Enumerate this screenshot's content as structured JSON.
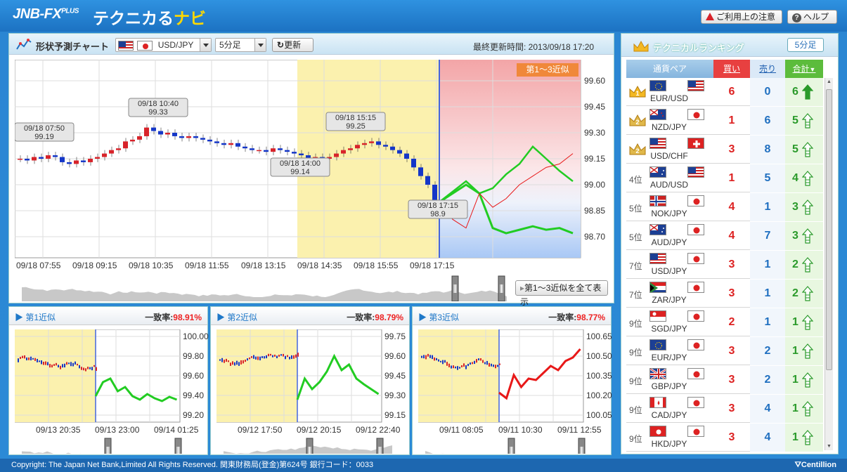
{
  "header": {
    "logo": "JNB-FX",
    "logo_plus": "PLUS",
    "app_name_a": "テクニカる",
    "app_name_b": "ナビ",
    "notice_btn": "ご利用上の注意",
    "help_btn": "ヘルプ"
  },
  "main": {
    "title": "形状予測チャート",
    "pair": "USD/JPY",
    "interval": "5分足",
    "refresh": "更新",
    "updated": "最終更新時間: 2013/09/18 17:20",
    "badge": "第1～3近似",
    "y_ticks": [
      "99.60",
      "99.45",
      "99.30",
      "99.15",
      "99.00",
      "98.85",
      "98.70"
    ],
    "x_ticks": [
      "09/18 07:55",
      "09/18 09:15",
      "09/18 10:35",
      "09/18 11:55",
      "09/18 13:15",
      "09/18 14:35",
      "09/18 15:55",
      "09/18 17:15"
    ],
    "callouts": [
      {
        "t": "09/18 07:50",
        "v": "99.19"
      },
      {
        "t": "09/18 10:40",
        "v": "99.33"
      },
      {
        "t": "09/18 15:15",
        "v": "99.25"
      },
      {
        "t": "09/18 14:00",
        "v": "99.14"
      },
      {
        "t": "09/18 17:15",
        "v": "98.9"
      }
    ],
    "show_all": "第1～3近似を全て表示",
    "colors": {
      "forecast_up": "#f3a5a7",
      "forecast_down": "#a9c8f5",
      "highlight": "#fbf1ae",
      "candle_up": "#d8232a",
      "candle_down": "#1537c8",
      "line_green": "#22cc22"
    }
  },
  "similar": [
    {
      "title": "第1近似",
      "match_label": "一致率:",
      "match": "98.91%",
      "y_ticks": [
        "100.00",
        "99.80",
        "99.60",
        "99.40",
        "99.20"
      ],
      "x_ticks": [
        "09/13 20:35",
        "09/13 23:00",
        "09/14 01:25"
      ],
      "line_color": "#22cc22"
    },
    {
      "title": "第2近似",
      "match_label": "一致率:",
      "match": "98.79%",
      "y_ticks": [
        "99.75",
        "99.60",
        "99.45",
        "99.30",
        "99.15"
      ],
      "x_ticks": [
        "09/12 17:50",
        "09/12 20:15",
        "09/12 22:40"
      ],
      "line_color": "#22cc22"
    },
    {
      "title": "第3近似",
      "match_label": "一致率:",
      "match": "98.77%",
      "y_ticks": [
        "100.65",
        "100.50",
        "100.35",
        "100.20",
        "100.05"
      ],
      "x_ticks": [
        "09/11 08:05",
        "09/11 10:30",
        "09/11 12:55"
      ],
      "line_color": "#e81818"
    }
  ],
  "ranking": {
    "title": "テクニカルランキング",
    "interval": "5分足",
    "headers": {
      "pair": "通貨ペア",
      "buy": "買い",
      "sell": "売り",
      "total": "合計"
    },
    "rows": [
      {
        "rank": "1",
        "crown": "gold",
        "f1": "eu",
        "f2": "us",
        "pair": "EUR/USD",
        "buy": "6",
        "sell": "0",
        "total": "6"
      },
      {
        "rank": "2",
        "crown": "silver",
        "f1": "nz",
        "f2": "jp",
        "pair": "NZD/JPY",
        "buy": "1",
        "sell": "6",
        "total": "5"
      },
      {
        "rank": "2",
        "crown": "silver",
        "f1": "us",
        "f2": "ch",
        "pair": "USD/CHF",
        "buy": "3",
        "sell": "8",
        "total": "5"
      },
      {
        "rank": "4位",
        "crown": "",
        "f1": "au",
        "f2": "us",
        "pair": "AUD/USD",
        "buy": "1",
        "sell": "5",
        "total": "4"
      },
      {
        "rank": "5位",
        "crown": "",
        "f1": "no",
        "f2": "jp",
        "pair": "NOK/JPY",
        "buy": "4",
        "sell": "1",
        "total": "3"
      },
      {
        "rank": "5位",
        "crown": "",
        "f1": "au",
        "f2": "jp",
        "pair": "AUD/JPY",
        "buy": "4",
        "sell": "7",
        "total": "3"
      },
      {
        "rank": "7位",
        "crown": "",
        "f1": "us",
        "f2": "jp",
        "pair": "USD/JPY",
        "buy": "3",
        "sell": "1",
        "total": "2"
      },
      {
        "rank": "7位",
        "crown": "",
        "f1": "za",
        "f2": "jp",
        "pair": "ZAR/JPY",
        "buy": "3",
        "sell": "1",
        "total": "2"
      },
      {
        "rank": "9位",
        "crown": "",
        "f1": "sg",
        "f2": "jp",
        "pair": "SGD/JPY",
        "buy": "2",
        "sell": "1",
        "total": "1"
      },
      {
        "rank": "9位",
        "crown": "",
        "f1": "eu",
        "f2": "jp",
        "pair": "EUR/JPY",
        "buy": "3",
        "sell": "2",
        "total": "1"
      },
      {
        "rank": "9位",
        "crown": "",
        "f1": "gb",
        "f2": "jp",
        "pair": "GBP/JPY",
        "buy": "3",
        "sell": "2",
        "total": "1"
      },
      {
        "rank": "9位",
        "crown": "",
        "f1": "ca",
        "f2": "jp",
        "pair": "CAD/JPY",
        "buy": "3",
        "sell": "4",
        "total": "1"
      },
      {
        "rank": "9位",
        "crown": "",
        "f1": "hk",
        "f2": "jp",
        "pair": "HKD/JPY",
        "buy": "3",
        "sell": "4",
        "total": "1"
      }
    ]
  },
  "footer": {
    "copyright": "Copyright: The Japan Net Bank,Limited All Rights Reserved.  関東財務局(登金)第624号  銀行コード：0033",
    "brand": "Centillion"
  }
}
